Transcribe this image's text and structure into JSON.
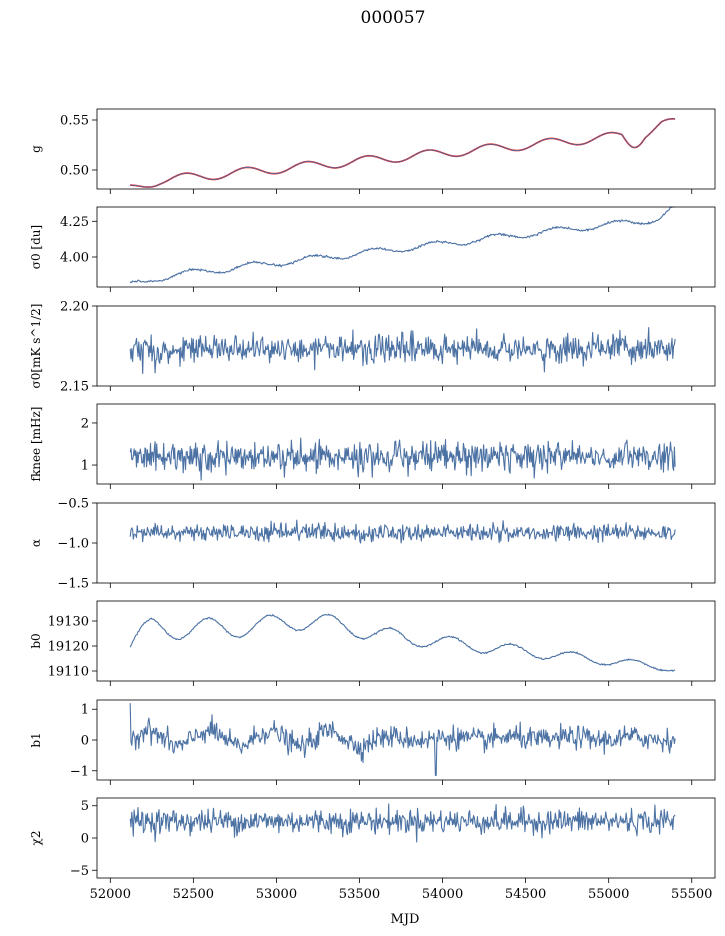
{
  "figure": {
    "title": "000057",
    "xlabel": "MJD"
  },
  "chart_data": [
    {
      "id": "g",
      "type": "line",
      "ylabel": "g",
      "xlim": [
        51920,
        55640
      ],
      "ylim": [
        0.481,
        0.561
      ],
      "yticks": [
        0.5,
        0.55
      ],
      "yticklabels": [
        "0.50",
        "0.55"
      ],
      "xticks": [
        52000,
        52500,
        53000,
        53500,
        54000,
        54500,
        55000,
        55500
      ],
      "gen": "g",
      "overlay_color": "#ff0000",
      "line_color": "#4c72a4",
      "x_range": [
        52120,
        55400
      ]
    },
    {
      "id": "sigma0_du",
      "type": "line",
      "ylabel": "σ0 [du]",
      "xlim": [
        51920,
        55640
      ],
      "ylim": [
        3.79,
        4.35
      ],
      "yticks": [
        4.0,
        4.25
      ],
      "yticklabels": [
        "4.00",
        "4.25"
      ],
      "xticks": [
        52000,
        52500,
        53000,
        53500,
        54000,
        54500,
        55000,
        55500
      ],
      "gen": "sigma_du",
      "line_color": "#4c72a4",
      "x_range": [
        52120,
        55400
      ]
    },
    {
      "id": "sigma0_mk",
      "type": "line",
      "ylabel": "σ0[mK s^1/2]",
      "xlim": [
        51920,
        55640
      ],
      "ylim": [
        2.15,
        2.2
      ],
      "yticks": [
        2.15,
        2.2
      ],
      "yticklabels": [
        "2.15",
        "2.20"
      ],
      "xticks": [
        52000,
        52500,
        53000,
        53500,
        54000,
        54500,
        55000,
        55500
      ],
      "gen": "noise",
      "mean": 2.173,
      "amp": 0.0045,
      "line_color": "#4c72a4",
      "x_range": [
        52120,
        55400
      ]
    },
    {
      "id": "fknee",
      "type": "line",
      "ylabel": "fknee [mHz]",
      "xlim": [
        51920,
        55640
      ],
      "ylim": [
        0.55,
        2.45
      ],
      "yticks": [
        1,
        2
      ],
      "yticklabels": [
        "1",
        "2"
      ],
      "xticks": [
        52000,
        52500,
        53000,
        53500,
        54000,
        54500,
        55000,
        55500
      ],
      "gen": "noise",
      "mean": 1.2,
      "amp": 0.18,
      "line_color": "#4c72a4",
      "x_range": [
        52120,
        55400
      ]
    },
    {
      "id": "alpha",
      "type": "line",
      "ylabel": "α",
      "xlim": [
        51920,
        55640
      ],
      "ylim": [
        -1.5,
        -0.5
      ],
      "yticks": [
        -1.5,
        -1.0,
        -0.5
      ],
      "yticklabels": [
        "−1.5",
        "−1.0",
        "−0.5"
      ],
      "xticks": [
        52000,
        52500,
        53000,
        53500,
        54000,
        54500,
        55000,
        55500
      ],
      "gen": "noise",
      "mean": -0.87,
      "amp": 0.055,
      "line_color": "#4c72a4",
      "x_range": [
        52120,
        55400
      ]
    },
    {
      "id": "b0",
      "type": "line",
      "ylabel": "b0",
      "xlim": [
        51920,
        55640
      ],
      "ylim": [
        19106,
        19138
      ],
      "yticks": [
        19110,
        19120,
        19130
      ],
      "yticklabels": [
        "19110",
        "19120",
        "19130"
      ],
      "xticks": [
        52000,
        52500,
        53000,
        53500,
        54000,
        54500,
        55000,
        55500
      ],
      "gen": "b0",
      "line_color": "#4c72a4",
      "x_range": [
        52120,
        55400
      ]
    },
    {
      "id": "b1",
      "type": "line",
      "ylabel": "b1",
      "xlim": [
        51920,
        55640
      ],
      "ylim": [
        -1.3,
        1.3
      ],
      "yticks": [
        -1,
        0,
        1
      ],
      "yticklabels": [
        "−1",
        "0",
        "1"
      ],
      "xticks": [
        52000,
        52500,
        53000,
        53500,
        54000,
        54500,
        55000,
        55500
      ],
      "gen": "b1",
      "line_color": "#4c72a4",
      "x_range": [
        52120,
        55400
      ]
    },
    {
      "id": "chi2",
      "type": "line",
      "ylabel": "χ2",
      "xlim": [
        51920,
        55640
      ],
      "ylim": [
        -6.2,
        6.2
      ],
      "yticks": [
        -5,
        0,
        5
      ],
      "yticklabels": [
        "−5",
        "0",
        "5"
      ],
      "xticks": [
        52000,
        52500,
        53000,
        53500,
        54000,
        54500,
        55000,
        55500
      ],
      "xticklabels": [
        "52000",
        "52500",
        "53000",
        "53500",
        "54000",
        "54500",
        "55000",
        "55500"
      ],
      "gen": "noise",
      "mean": 2.6,
      "amp": 0.95,
      "line_color": "#4c72a4",
      "x_range": [
        52120,
        55400
      ]
    }
  ]
}
